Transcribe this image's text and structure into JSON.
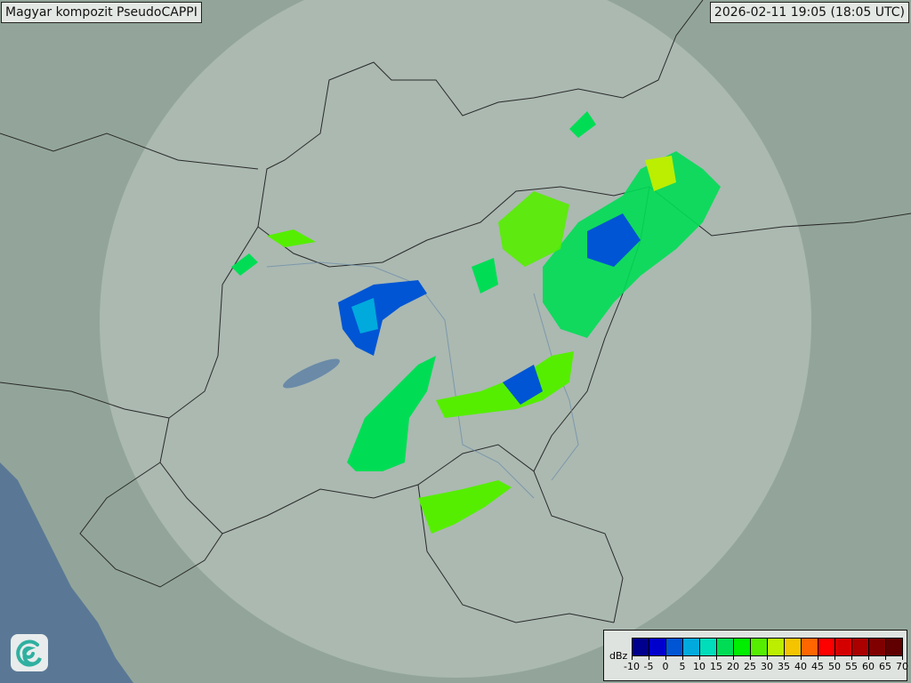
{
  "title": "Magyar kompozit  PseudoCAPPI",
  "timestamp": "2026-02-11 19:05 (18:05 UTC)",
  "legend": {
    "unit": "dBz",
    "ticks": [
      "-10",
      "-5",
      "0",
      "5",
      "10",
      "15",
      "20",
      "25",
      "30",
      "35",
      "40",
      "45",
      "50",
      "55",
      "60",
      "65",
      "70"
    ],
    "colors": [
      "#00008f",
      "#0000cc",
      "#0055d4",
      "#00aadd",
      "#00ddbb",
      "#00dd55",
      "#00ee00",
      "#55ee00",
      "#bbee00",
      "#f5c400",
      "#ff6600",
      "#ff0000",
      "#d40000",
      "#aa0000",
      "#800000",
      "#600000"
    ]
  },
  "logo": {
    "icon": "swirl-logo-icon"
  },
  "colors": {
    "land": "#93a59a",
    "sea": "#5a7896",
    "radar_coverage": "#c9d3cf"
  }
}
